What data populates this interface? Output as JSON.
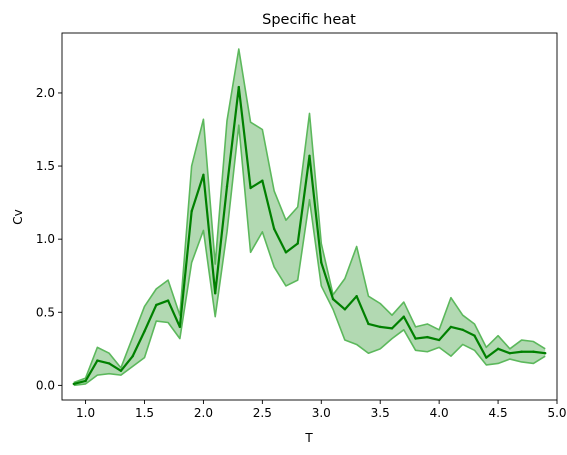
{
  "chart_data": {
    "type": "line",
    "title": "Specific heat",
    "xlabel": "T",
    "ylabel": "Cv",
    "xlim": [
      0.8,
      5.0
    ],
    "ylim": [
      -0.1,
      2.41
    ],
    "grid": false,
    "x_ticks": [
      "1.0",
      "1.5",
      "2.0",
      "2.5",
      "3.0",
      "3.5",
      "4.0",
      "4.5",
      "5.0"
    ],
    "y_ticks": [
      "0.0",
      "0.5",
      "1.0",
      "1.5",
      "2.0"
    ],
    "colors": {
      "line": "#008000",
      "band_fill": "#008000",
      "band_edge": "#5cb85c"
    },
    "x": [
      0.9,
      1.0,
      1.1,
      1.2,
      1.3,
      1.4,
      1.5,
      1.6,
      1.7,
      1.8,
      1.9,
      2.0,
      2.1,
      2.2,
      2.3,
      2.4,
      2.5,
      2.6,
      2.7,
      2.8,
      2.9,
      3.0,
      3.1,
      3.2,
      3.3,
      3.4,
      3.5,
      3.6,
      3.7,
      3.8,
      3.9,
      4.0,
      4.1,
      4.2,
      4.3,
      4.4,
      4.5,
      4.6,
      4.7,
      4.8,
      4.9
    ],
    "series": [
      {
        "values": [
          0.01,
          0.03,
          0.17,
          0.15,
          0.1,
          0.2,
          0.37,
          0.55,
          0.58,
          0.4,
          1.19,
          1.44,
          0.63,
          1.36,
          2.04,
          1.35,
          1.4,
          1.07,
          0.91,
          0.97,
          1.57,
          0.84,
          0.59,
          0.52,
          0.61,
          0.42,
          0.4,
          0.39,
          0.47,
          0.32,
          0.33,
          0.31,
          0.4,
          0.38,
          0.34,
          0.19,
          0.25,
          0.22,
          0.23,
          0.23,
          0.22
        ],
        "lower": [
          0.0,
          0.01,
          0.07,
          0.08,
          0.07,
          0.13,
          0.19,
          0.44,
          0.43,
          0.32,
          0.84,
          1.06,
          0.47,
          1.05,
          1.78,
          0.91,
          1.05,
          0.81,
          0.68,
          0.72,
          1.27,
          0.68,
          0.52,
          0.31,
          0.28,
          0.22,
          0.25,
          0.32,
          0.38,
          0.24,
          0.23,
          0.26,
          0.2,
          0.28,
          0.24,
          0.14,
          0.15,
          0.18,
          0.16,
          0.15,
          0.2
        ],
        "upper": [
          0.02,
          0.05,
          0.26,
          0.22,
          0.12,
          0.33,
          0.54,
          0.66,
          0.72,
          0.48,
          1.5,
          1.82,
          0.83,
          1.81,
          2.3,
          1.8,
          1.75,
          1.33,
          1.13,
          1.22,
          1.86,
          0.97,
          0.62,
          0.73,
          0.95,
          0.61,
          0.56,
          0.48,
          0.57,
          0.4,
          0.42,
          0.38,
          0.6,
          0.48,
          0.42,
          0.26,
          0.34,
          0.25,
          0.31,
          0.3,
          0.25
        ]
      }
    ]
  }
}
